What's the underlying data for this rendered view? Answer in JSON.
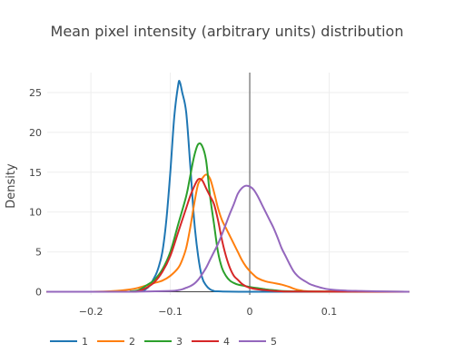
{
  "chart_data": {
    "type": "line",
    "title": "Mean pixel intensity (arbitrary units) distribution",
    "xlabel": "",
    "ylabel": "Density",
    "xlim": [
      -0.255,
      0.2
    ],
    "ylim": [
      -0.4,
      27.5
    ],
    "xticks": [
      -0.2,
      -0.1,
      0,
      0.1
    ],
    "xtick_labels": [
      "−0.2",
      "−0.1",
      "0",
      "0.1"
    ],
    "yticks": [
      0,
      5,
      10,
      15,
      20,
      25
    ],
    "ytick_labels": [
      "0",
      "5",
      "10",
      "15",
      "20",
      "25"
    ],
    "grid": true,
    "zero_line_x": 0,
    "legend_position": "bottom",
    "series": [
      {
        "name": "1",
        "color": "#1f77b4",
        "x": [
          -0.255,
          -0.15,
          -0.13,
          -0.12,
          -0.115,
          -0.11,
          -0.105,
          -0.1,
          -0.095,
          -0.09,
          -0.088,
          -0.085,
          -0.08,
          -0.075,
          -0.07,
          -0.065,
          -0.06,
          -0.055,
          -0.05,
          -0.045,
          -0.04,
          0,
          0.2
        ],
        "y": [
          0,
          0,
          0.4,
          1.8,
          3.0,
          5.0,
          9.0,
          15.0,
          22.0,
          26.0,
          26.3,
          25.0,
          22.5,
          16.0,
          9.0,
          4.5,
          1.8,
          0.8,
          0.3,
          0.1,
          0.05,
          0,
          0
        ]
      },
      {
        "name": "2",
        "color": "#ff7f0e",
        "x": [
          -0.255,
          -0.2,
          -0.17,
          -0.15,
          -0.14,
          -0.13,
          -0.12,
          -0.11,
          -0.1,
          -0.09,
          -0.085,
          -0.08,
          -0.075,
          -0.07,
          -0.065,
          -0.06,
          -0.055,
          -0.05,
          -0.045,
          -0.04,
          -0.035,
          -0.03,
          -0.025,
          -0.02,
          -0.015,
          -0.01,
          -0.005,
          0,
          0.005,
          0.01,
          0.02,
          0.03,
          0.04,
          0.05,
          0.055,
          0.06,
          0.065,
          0.07,
          0.09,
          0.2
        ],
        "y": [
          0,
          0,
          0.1,
          0.3,
          0.5,
          0.8,
          1.1,
          1.4,
          2.0,
          3.0,
          4.0,
          5.5,
          8.0,
          11.0,
          13.5,
          14.2,
          14.7,
          14.2,
          12.5,
          10.5,
          9.0,
          8.0,
          7.0,
          6.0,
          5.0,
          4.0,
          3.2,
          2.6,
          2.1,
          1.7,
          1.3,
          1.1,
          0.9,
          0.6,
          0.4,
          0.25,
          0.15,
          0.08,
          0.03,
          0
        ]
      },
      {
        "name": "3",
        "color": "#2ca02c",
        "x": [
          -0.255,
          -0.16,
          -0.15,
          -0.14,
          -0.13,
          -0.12,
          -0.11,
          -0.1,
          -0.09,
          -0.08,
          -0.075,
          -0.07,
          -0.065,
          -0.06,
          -0.055,
          -0.05,
          -0.045,
          -0.04,
          -0.035,
          -0.03,
          -0.025,
          -0.02,
          -0.015,
          -0.01,
          -0.005,
          0,
          0.01,
          0.02,
          0.03,
          0.04,
          0.06,
          0.08,
          0.1,
          0.2
        ],
        "y": [
          0,
          0,
          0.05,
          0.2,
          0.8,
          1.5,
          2.8,
          5.0,
          8.5,
          12.0,
          14.5,
          17.0,
          18.5,
          18.3,
          16.5,
          12.0,
          8.5,
          5.0,
          3.0,
          2.0,
          1.4,
          1.1,
          0.9,
          0.8,
          0.7,
          0.6,
          0.45,
          0.3,
          0.2,
          0.1,
          0.05,
          0.03,
          0.02,
          0
        ]
      },
      {
        "name": "4",
        "color": "#d62728",
        "x": [
          -0.255,
          -0.2,
          -0.15,
          -0.14,
          -0.13,
          -0.12,
          -0.11,
          -0.1,
          -0.09,
          -0.08,
          -0.075,
          -0.07,
          -0.065,
          -0.06,
          -0.055,
          -0.05,
          -0.045,
          -0.04,
          -0.035,
          -0.03,
          -0.025,
          -0.02,
          -0.015,
          -0.01,
          -0.005,
          0,
          0.01,
          0.02,
          0.03,
          0.04,
          0.06,
          0.2
        ],
        "y": [
          0,
          0,
          0,
          0.1,
          0.5,
          1.2,
          2.5,
          4.5,
          7.5,
          10.5,
          12.0,
          13.2,
          14.1,
          14.0,
          13.0,
          12.0,
          11.0,
          9.0,
          6.5,
          4.5,
          3.0,
          2.0,
          1.5,
          1.0,
          0.7,
          0.5,
          0.3,
          0.2,
          0.1,
          0.05,
          0.02,
          0
        ]
      },
      {
        "name": "5",
        "color": "#9467bd",
        "x": [
          -0.255,
          -0.15,
          -0.1,
          -0.09,
          -0.085,
          -0.08,
          -0.075,
          -0.07,
          -0.065,
          -0.06,
          -0.055,
          -0.05,
          -0.045,
          -0.04,
          -0.035,
          -0.03,
          -0.025,
          -0.02,
          -0.015,
          -0.01,
          -0.005,
          0,
          0.005,
          0.01,
          0.015,
          0.02,
          0.025,
          0.03,
          0.035,
          0.04,
          0.045,
          0.05,
          0.055,
          0.06,
          0.065,
          0.07,
          0.075,
          0.08,
          0.09,
          0.1,
          0.12,
          0.14,
          0.16,
          0.2
        ],
        "y": [
          0,
          0,
          0.1,
          0.2,
          0.3,
          0.5,
          0.7,
          1.0,
          1.5,
          2.2,
          3.0,
          4.0,
          5.0,
          6.0,
          7.2,
          8.5,
          9.8,
          11.0,
          12.3,
          13.0,
          13.3,
          13.2,
          12.8,
          12.0,
          11.0,
          10.0,
          9.0,
          8.0,
          6.8,
          5.5,
          4.5,
          3.5,
          2.6,
          2.0,
          1.6,
          1.3,
          1.0,
          0.8,
          0.5,
          0.3,
          0.15,
          0.1,
          0.05,
          0
        ]
      }
    ]
  }
}
